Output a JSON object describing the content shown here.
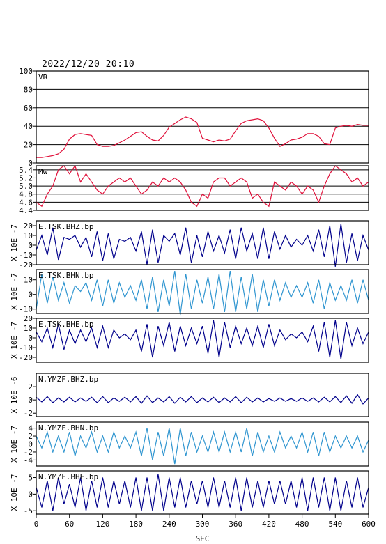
{
  "header": {
    "datetime": "2022/12/20 20:10"
  },
  "x_axis": {
    "label": "SEC",
    "range": [
      0,
      600
    ],
    "ticks": [
      0,
      60,
      120,
      180,
      240,
      300,
      360,
      420,
      480,
      540,
      600
    ]
  },
  "chart_data": [
    {
      "type": "line",
      "name": "VR",
      "label": "VR",
      "ylabel": "",
      "color": "#e0103a",
      "ylim": [
        0,
        100
      ],
      "yticks": [
        0,
        20,
        40,
        60,
        80,
        100
      ],
      "grid": true,
      "x": [
        0,
        10,
        20,
        30,
        40,
        50,
        60,
        70,
        80,
        90,
        100,
        110,
        120,
        130,
        140,
        150,
        160,
        170,
        180,
        190,
        200,
        210,
        220,
        230,
        240,
        250,
        260,
        270,
        280,
        290,
        300,
        310,
        320,
        330,
        340,
        350,
        360,
        370,
        380,
        390,
        400,
        410,
        420,
        430,
        440,
        450,
        460,
        470,
        480,
        490,
        500,
        510,
        520,
        530,
        540,
        550,
        560,
        570,
        580,
        590,
        600
      ],
      "values": [
        6,
        6,
        7,
        8,
        10,
        15,
        26,
        31,
        32,
        31,
        30,
        20,
        18,
        18,
        19,
        22,
        25,
        29,
        33,
        34,
        29,
        25,
        24,
        30,
        39,
        43,
        47,
        50,
        48,
        44,
        27,
        25,
        23,
        25,
        24,
        26,
        35,
        43,
        46,
        47,
        48,
        46,
        38,
        27,
        18,
        21,
        25,
        26,
        28,
        32,
        32,
        29,
        21,
        20,
        38,
        40,
        41,
        40,
        42,
        41,
        41
      ]
    },
    {
      "type": "line",
      "name": "Mw",
      "label": "Mw",
      "ylabel": "",
      "color": "#e0103a",
      "ylim": [
        4.4,
        5.5
      ],
      "yticks": [
        4.4,
        4.6,
        4.8,
        5.0,
        5.2,
        5.4
      ],
      "ytick_labels": [
        "4.4",
        "4.6",
        "4.8",
        "5.0",
        "5.2",
        "5.4"
      ],
      "grid": true,
      "x": [
        0,
        10,
        20,
        30,
        40,
        50,
        60,
        70,
        80,
        90,
        100,
        110,
        120,
        130,
        140,
        150,
        160,
        170,
        180,
        190,
        200,
        210,
        220,
        230,
        240,
        250,
        260,
        270,
        280,
        290,
        300,
        310,
        320,
        330,
        340,
        350,
        360,
        370,
        380,
        390,
        400,
        410,
        420,
        430,
        440,
        450,
        460,
        470,
        480,
        490,
        500,
        510,
        520,
        530,
        540,
        550,
        560,
        570,
        580,
        590,
        600
      ],
      "values": [
        4.6,
        4.5,
        4.8,
        5.0,
        5.4,
        5.5,
        5.3,
        5.5,
        5.1,
        5.3,
        5.1,
        4.9,
        4.8,
        5.0,
        5.1,
        5.2,
        5.1,
        5.2,
        5.0,
        4.8,
        4.9,
        5.1,
        5.0,
        5.2,
        5.1,
        5.2,
        5.1,
        4.9,
        4.6,
        4.5,
        4.8,
        4.7,
        5.1,
        5.2,
        5.2,
        5.0,
        5.1,
        5.2,
        5.1,
        4.7,
        4.8,
        4.6,
        4.5,
        5.1,
        5.0,
        4.9,
        5.1,
        5.0,
        4.8,
        5.0,
        4.9,
        4.6,
        5.0,
        5.3,
        5.5,
        5.4,
        5.3,
        5.1,
        5.2,
        5.0,
        5.1
      ]
    },
    {
      "type": "line",
      "name": "E.TSK.BHZ.bp",
      "label": "E.TSK.BHZ.bp",
      "ylabel": "X 10E -7",
      "color": "#00008b",
      "ylim": [
        -20,
        25
      ],
      "yticks": [
        -20,
        -10,
        0,
        10,
        20
      ],
      "grid": false,
      "x": [
        0,
        10,
        20,
        30,
        40,
        50,
        60,
        70,
        80,
        90,
        100,
        110,
        120,
        130,
        140,
        150,
        160,
        170,
        180,
        190,
        200,
        210,
        220,
        230,
        240,
        250,
        260,
        270,
        280,
        290,
        300,
        310,
        320,
        330,
        340,
        350,
        360,
        370,
        380,
        390,
        400,
        410,
        420,
        430,
        440,
        450,
        460,
        470,
        480,
        490,
        500,
        510,
        520,
        530,
        540,
        550,
        560,
        570,
        580,
        590,
        600
      ],
      "values": [
        -5,
        10,
        -10,
        18,
        -15,
        8,
        6,
        10,
        -2,
        8,
        -12,
        14,
        -16,
        12,
        -14,
        6,
        4,
        8,
        -6,
        14,
        -20,
        16,
        -18,
        10,
        4,
        12,
        -10,
        18,
        -18,
        10,
        -12,
        14,
        -6,
        10,
        -8,
        16,
        -14,
        18,
        -6,
        12,
        -14,
        18,
        -14,
        14,
        -4,
        10,
        -2,
        6,
        0,
        10,
        -6,
        16,
        -12,
        20,
        -22,
        22,
        -18,
        12,
        -16,
        10,
        -5
      ]
    },
    {
      "type": "line",
      "name": "E.TSK.BHN.bp",
      "label": "E.TSK.BHN.bp",
      "ylabel": "X 10E -7",
      "color": "#2f95d0",
      "ylim": [
        -13,
        17
      ],
      "yticks": [
        -10,
        0,
        10
      ],
      "grid": false,
      "x": [
        0,
        10,
        20,
        30,
        40,
        50,
        60,
        70,
        80,
        90,
        100,
        110,
        120,
        130,
        140,
        150,
        160,
        170,
        180,
        190,
        200,
        210,
        220,
        230,
        240,
        250,
        260,
        270,
        280,
        290,
        300,
        310,
        320,
        330,
        340,
        350,
        360,
        370,
        380,
        390,
        400,
        410,
        420,
        430,
        440,
        450,
        460,
        470,
        480,
        490,
        500,
        510,
        520,
        530,
        540,
        550,
        560,
        570,
        580,
        590,
        600
      ],
      "values": [
        -10,
        14,
        -6,
        12,
        -4,
        8,
        -6,
        6,
        2,
        8,
        -4,
        10,
        -8,
        10,
        -6,
        8,
        -2,
        6,
        -4,
        10,
        -10,
        12,
        -12,
        10,
        -8,
        16,
        -14,
        14,
        -10,
        10,
        -6,
        12,
        -10,
        14,
        -12,
        16,
        -12,
        12,
        -10,
        14,
        -12,
        10,
        -8,
        10,
        -4,
        8,
        -2,
        6,
        -2,
        8,
        -6,
        10,
        -10,
        8,
        -4,
        6,
        -4,
        10,
        -6,
        10,
        -4
      ]
    },
    {
      "type": "line",
      "name": "E.TSK.BHE.bp",
      "label": "E.TSK.BHE.bp",
      "ylabel": "X 10E -7",
      "color": "#00008b",
      "ylim": [
        -25,
        20
      ],
      "yticks": [
        -20,
        -10,
        0,
        10,
        20
      ],
      "grid": false,
      "x": [
        0,
        10,
        20,
        30,
        40,
        50,
        60,
        70,
        80,
        90,
        100,
        110,
        120,
        130,
        140,
        150,
        160,
        170,
        180,
        190,
        200,
        210,
        220,
        230,
        240,
        250,
        260,
        270,
        280,
        290,
        300,
        310,
        320,
        330,
        340,
        350,
        360,
        370,
        380,
        390,
        400,
        410,
        420,
        430,
        440,
        450,
        460,
        470,
        480,
        490,
        500,
        510,
        520,
        530,
        540,
        550,
        560,
        570,
        580,
        590,
        600
      ],
      "values": [
        6,
        -4,
        10,
        -10,
        14,
        -12,
        8,
        -6,
        8,
        -4,
        10,
        -10,
        12,
        -10,
        8,
        0,
        4,
        -2,
        8,
        -14,
        14,
        -20,
        12,
        -8,
        16,
        -14,
        12,
        -8,
        10,
        -6,
        12,
        -16,
        18,
        -20,
        16,
        -10,
        12,
        -6,
        10,
        -8,
        12,
        -10,
        14,
        -8,
        8,
        -2,
        4,
        0,
        6,
        -4,
        12,
        -14,
        16,
        -20,
        18,
        -22,
        16,
        -8,
        10,
        -6,
        6
      ]
    },
    {
      "type": "line",
      "name": "N.YMZF.BHZ.bp",
      "label": "N.YMZF.BHZ.bp",
      "ylabel": "X 10E -6",
      "color": "#00008b",
      "ylim": [
        -2.5,
        4
      ],
      "yticks": [
        -2,
        0,
        2
      ],
      "grid": false,
      "x": [
        0,
        10,
        20,
        30,
        40,
        50,
        60,
        70,
        80,
        90,
        100,
        110,
        120,
        130,
        140,
        150,
        160,
        170,
        180,
        190,
        200,
        210,
        220,
        230,
        240,
        250,
        260,
        270,
        280,
        290,
        300,
        310,
        320,
        330,
        340,
        350,
        360,
        370,
        380,
        390,
        400,
        410,
        420,
        430,
        440,
        450,
        460,
        470,
        480,
        490,
        500,
        510,
        520,
        530,
        540,
        550,
        560,
        570,
        580,
        590,
        600
      ],
      "values": [
        0.4,
        -0.3,
        0.5,
        -0.4,
        0.3,
        -0.3,
        0.4,
        -0.3,
        0.3,
        -0.2,
        0.4,
        -0.4,
        0.5,
        -0.4,
        0.3,
        -0.2,
        0.4,
        -0.3,
        0.5,
        -0.5,
        0.6,
        -0.4,
        0.3,
        -0.3,
        0.5,
        -0.5,
        0.4,
        -0.3,
        0.5,
        -0.4,
        0.3,
        -0.3,
        0.4,
        -0.4,
        0.3,
        -0.3,
        0.5,
        -0.4,
        0.4,
        -0.3,
        0.3,
        -0.3,
        0.2,
        -0.2,
        0.3,
        -0.2,
        0.2,
        -0.2,
        0.3,
        -0.2,
        0.3,
        -0.3,
        0.4,
        -0.3,
        0.5,
        -0.4,
        0.6,
        -0.5,
        0.8,
        -0.6,
        0.3
      ]
    },
    {
      "type": "line",
      "name": "N.YMZF.BHN.bp",
      "label": "N.YMZF.BHN.bp",
      "ylabel": "X 10E -7",
      "color": "#2f95d0",
      "ylim": [
        -5.5,
        5.5
      ],
      "yticks": [
        -4,
        -2,
        0,
        2,
        4
      ],
      "grid": false,
      "x": [
        0,
        10,
        20,
        30,
        40,
        50,
        60,
        70,
        80,
        90,
        100,
        110,
        120,
        130,
        140,
        150,
        160,
        170,
        180,
        190,
        200,
        210,
        220,
        230,
        240,
        250,
        260,
        270,
        280,
        290,
        300,
        310,
        320,
        330,
        340,
        350,
        360,
        370,
        380,
        390,
        400,
        410,
        420,
        430,
        440,
        450,
        460,
        470,
        480,
        490,
        500,
        510,
        520,
        530,
        540,
        550,
        560,
        570,
        580,
        590,
        600
      ],
      "values": [
        2,
        -1,
        3,
        -2,
        2,
        -2,
        3,
        -3,
        2,
        -1,
        3,
        -2,
        2,
        -2,
        3,
        -1,
        2,
        -1,
        3,
        -3,
        4,
        -4,
        3,
        -3,
        4,
        -5,
        4,
        -3,
        3,
        -2,
        2,
        -2,
        3,
        -2,
        3,
        -2,
        3,
        -2,
        4,
        -3,
        3,
        -2,
        2,
        -2,
        3,
        -1,
        2,
        -1,
        3,
        -2,
        3,
        -3,
        3,
        -2,
        2,
        -1,
        2,
        -1,
        2,
        -2,
        1
      ]
    },
    {
      "type": "line",
      "name": "N.YMZF.BHE.bp",
      "label": "N.YMZF.BHE.bp",
      "ylabel": "X 10E -7",
      "color": "#00008b",
      "ylim": [
        -6,
        7
      ],
      "yticks": [
        -5,
        0,
        5
      ],
      "grid": false,
      "x": [
        0,
        10,
        20,
        30,
        40,
        50,
        60,
        70,
        80,
        90,
        100,
        110,
        120,
        130,
        140,
        150,
        160,
        170,
        180,
        190,
        200,
        210,
        220,
        230,
        240,
        250,
        260,
        270,
        280,
        290,
        300,
        310,
        320,
        330,
        340,
        350,
        360,
        370,
        380,
        390,
        400,
        410,
        420,
        430,
        440,
        450,
        460,
        470,
        480,
        490,
        500,
        510,
        520,
        530,
        540,
        550,
        560,
        570,
        580,
        590,
        600
      ],
      "values": [
        2,
        -4,
        4,
        -5,
        5,
        -3,
        3,
        -4,
        5,
        -5,
        4,
        -4,
        5,
        -4,
        4,
        -3,
        4,
        -4,
        5,
        -5,
        5,
        -5,
        6,
        -5,
        5,
        -4,
        5,
        -4,
        4,
        -3,
        4,
        -4,
        5,
        -4,
        4,
        -4,
        5,
        -5,
        5,
        -4,
        4,
        -4,
        4,
        -3,
        4,
        -3,
        4,
        -4,
        5,
        -5,
        5,
        -4,
        5,
        -5,
        5,
        -5,
        4,
        -4,
        5,
        -4,
        2
      ]
    }
  ]
}
